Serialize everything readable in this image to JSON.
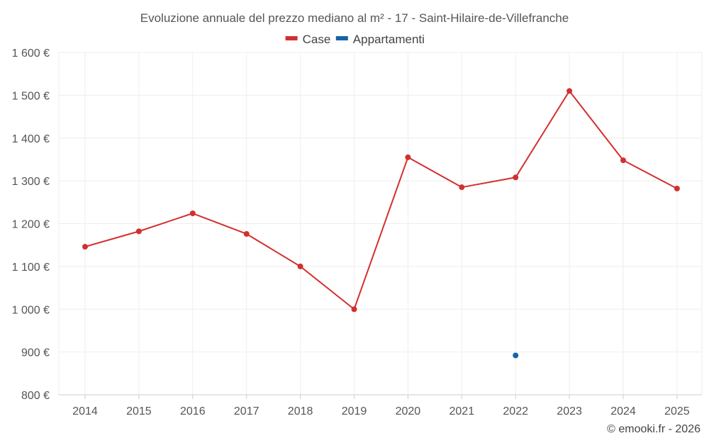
{
  "chart_data": {
    "type": "line",
    "title": "Evoluzione annuale del prezzo mediano al m² - 17 - Saint-Hilaire-de-Villefranche",
    "categories": [
      "2014",
      "2015",
      "2016",
      "2017",
      "2018",
      "2019",
      "2020",
      "2021",
      "2022",
      "2023",
      "2024",
      "2025"
    ],
    "series": [
      {
        "name": "Case",
        "color": "#d32f2f",
        "values": [
          1146,
          1182,
          1224,
          1176,
          1100,
          1000,
          1355,
          1285,
          1308,
          1510,
          1348,
          1282
        ]
      },
      {
        "name": "Appartamenti",
        "color": "#1565a6",
        "values": [
          null,
          null,
          null,
          null,
          null,
          null,
          null,
          null,
          892,
          null,
          null,
          null
        ]
      }
    ],
    "ylim": [
      800,
      1600
    ],
    "yticks": [
      800,
      900,
      1000,
      1100,
      1200,
      1300,
      1400,
      1500,
      1600
    ],
    "ytick_labels": [
      "800 €",
      "900 €",
      "1 000 €",
      "1 100 €",
      "1 200 €",
      "1 300 €",
      "1 400 €",
      "1 500 €",
      "1 600 €"
    ],
    "xlabel": "",
    "ylabel": "",
    "grid": true,
    "legend_position": "top-center"
  },
  "footer": {
    "credit": "© emooki.fr - 2026"
  }
}
